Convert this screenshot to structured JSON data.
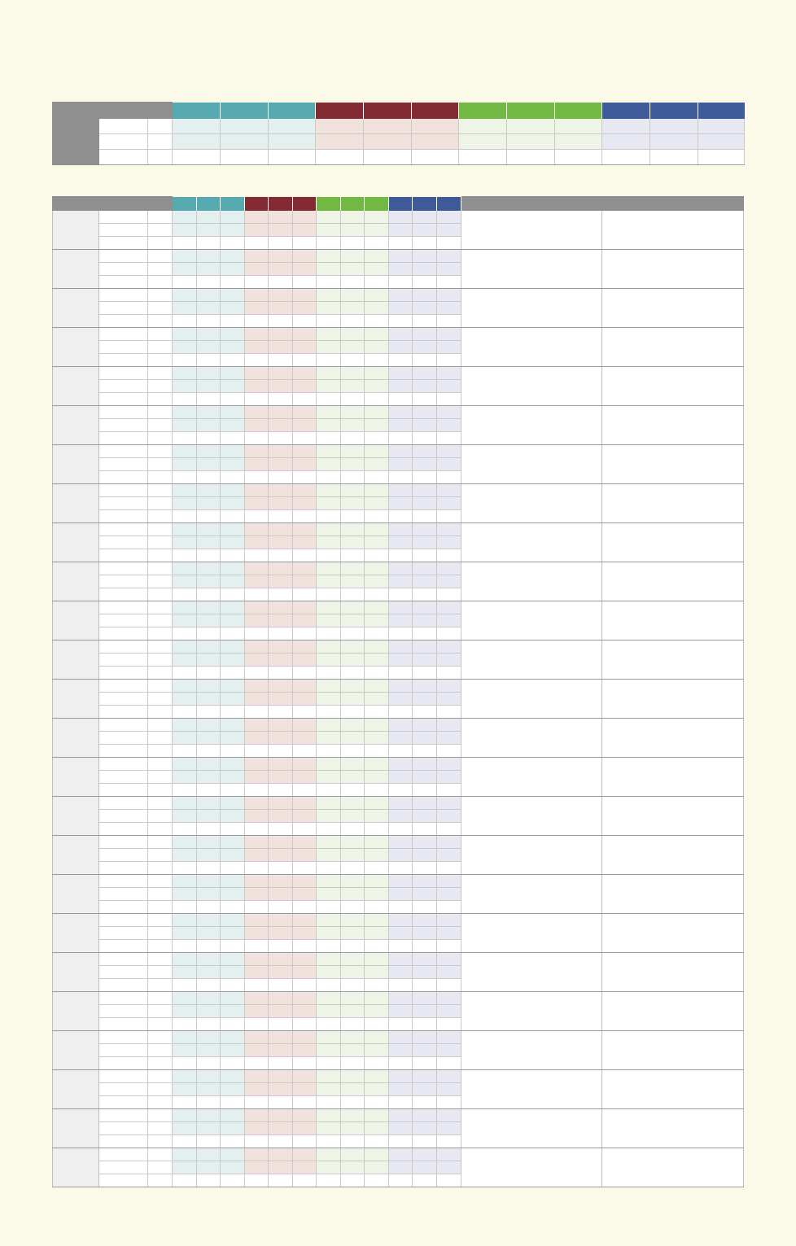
{
  "colors": {
    "page_background": "#fbfae8",
    "header_grey": "#8f8f8f",
    "teal": "#57aab0",
    "maroon": "#842a33",
    "green": "#72b944",
    "blue": "#3e5a99",
    "teal_tint": "#e4f0ef",
    "maroon_tint": "#f1e2de",
    "green_tint": "#eff5e6",
    "blue_tint": "#e8e8f3",
    "label_grey": "#efefef",
    "white": "#ffffff"
  },
  "summary_table": {
    "column_groups": [
      "teal",
      "maroon",
      "green",
      "blue"
    ],
    "columns_per_group": 3,
    "rows": [
      {
        "tinted": true,
        "cells": []
      },
      {
        "tinted": true,
        "cells": []
      },
      {
        "tinted": false,
        "cells": []
      }
    ]
  },
  "main_table": {
    "column_groups": [
      "teal",
      "maroon",
      "green",
      "blue"
    ],
    "columns_per_group": 3,
    "extra_columns": 2,
    "group_count": 25,
    "rows_per_group": 3,
    "tinted_rows": [
      true,
      true,
      false
    ],
    "groups": []
  }
}
